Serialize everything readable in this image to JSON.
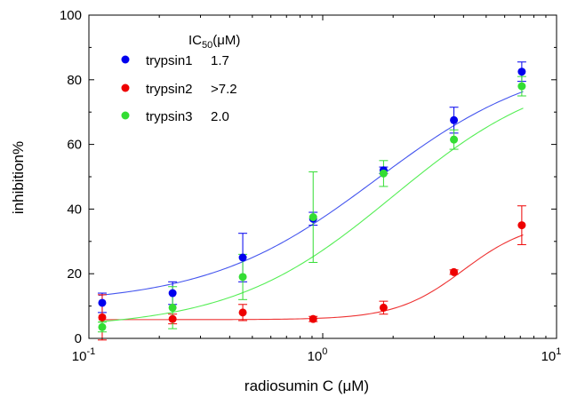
{
  "chart_data": {
    "type": "scatter",
    "xscale": "log",
    "xlim": [
      0.1,
      10
    ],
    "ylim": [
      0,
      100
    ],
    "xlabel": "radiosumin C (μM)",
    "ylabel": "inhibition%",
    "x_ticks": [
      {
        "value": 0.1,
        "base": "10",
        "exp": "-1"
      },
      {
        "value": 1,
        "base": "10",
        "exp": "0"
      },
      {
        "value": 10,
        "base": "10",
        "exp": "1"
      }
    ],
    "y_ticks": [
      0,
      20,
      40,
      60,
      80,
      100
    ],
    "legend": {
      "header_prefix": "IC",
      "header_sub": "50",
      "header_suffix": "(μM)",
      "position": "top-left"
    },
    "series": [
      {
        "name": "trypsin1",
        "ic50": "1.7",
        "color": "#0000ee",
        "fit_color": "#4455ee",
        "x": [
          0.114,
          0.228,
          0.455,
          0.91,
          1.82,
          3.64,
          7.1
        ],
        "y": [
          11.0,
          14.0,
          25.0,
          37.0,
          52.0,
          67.5,
          82.5
        ],
        "err": [
          3.0,
          3.5,
          7.5,
          2.0,
          1.0,
          4.0,
          3.0
        ],
        "fit": {
          "bottom": 10.5,
          "top": 88,
          "ic50": 1.7,
          "hill": 1.2
        }
      },
      {
        "name": "trypsin2",
        "ic50": ">7.2",
        "color": "#ee0000",
        "fit_color": "#ee3333",
        "x": [
          0.114,
          0.228,
          0.455,
          0.91,
          1.82,
          3.64,
          7.1
        ],
        "y": [
          6.5,
          6.0,
          8.0,
          6.0,
          9.5,
          20.5,
          35.0
        ],
        "err": [
          7.0,
          1.5,
          2.5,
          0.8,
          2.0,
          0.7,
          6.0
        ],
        "fit": {
          "bottom": 5.8,
          "top": 36.5,
          "ic50": 4.0,
          "hill": 3.0
        }
      },
      {
        "name": "trypsin3",
        "ic50": "2.0",
        "color": "#33dd33",
        "fit_color": "#55ee55",
        "x": [
          0.114,
          0.228,
          0.455,
          0.91,
          1.82,
          3.64,
          7.1
        ],
        "y": [
          3.5,
          9.5,
          19.0,
          37.5,
          51.0,
          61.5,
          78.0
        ],
        "err": [
          1.5,
          6.5,
          7.0,
          14.0,
          4.0,
          3.0,
          3.0
        ],
        "fit": {
          "bottom": 3.0,
          "top": 85,
          "ic50": 2.0,
          "hill": 1.25
        }
      }
    ]
  }
}
